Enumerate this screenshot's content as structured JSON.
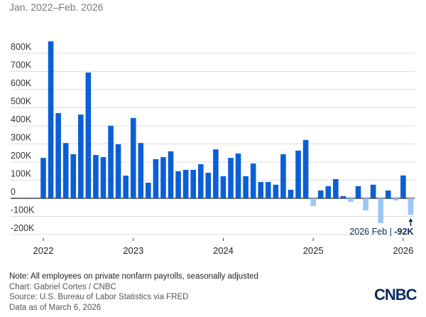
{
  "subtitle": "Jan. 2022–Feb. 2026",
  "chart_data": {
    "type": "bar",
    "x_start": "2022-01",
    "x_end": "2026-02",
    "frequency": "monthly",
    "values": [
      223,
      866,
      470,
      305,
      243,
      462,
      694,
      239,
      227,
      400,
      298,
      125,
      443,
      305,
      86,
      216,
      227,
      259,
      149,
      157,
      157,
      188,
      141,
      270,
      122,
      223,
      247,
      122,
      192,
      90,
      90,
      75,
      243,
      47,
      263,
      322,
      -43,
      43,
      67,
      106,
      12,
      -20,
      67,
      -67,
      75,
      -137,
      43,
      -12,
      126,
      -92
    ],
    "unit": "thousands",
    "ylim": [
      -230,
      880
    ],
    "y_ticks": [
      -200,
      -100,
      0,
      100,
      200,
      300,
      400,
      500,
      600,
      700,
      800
    ],
    "y_tick_labels": [
      "-200K",
      "-100K",
      "0",
      "100K",
      "200K",
      "300K",
      "400K",
      "500K",
      "600K",
      "700K",
      "800K"
    ],
    "x_ticks": [
      "2022",
      "2023",
      "2024",
      "2025",
      "2026"
    ],
    "grid": true,
    "colors": {
      "positive": "#0a5fd6",
      "negative": "#9cc6f5",
      "annotation": "#0b2a5c"
    },
    "annotation": {
      "label": "2026 Feb | ",
      "value": "-92K"
    }
  },
  "notes": {
    "note": "Note: All employees on private nonfarm payrolls, seasonally adjusted",
    "chart": "Chart: Gabriel Cortes / CNBC",
    "source": "Source: U.S. Bureau of Labor Statistics via FRED",
    "data_as_of": "Data as of March 6, 2026"
  },
  "logo": "CNBC"
}
